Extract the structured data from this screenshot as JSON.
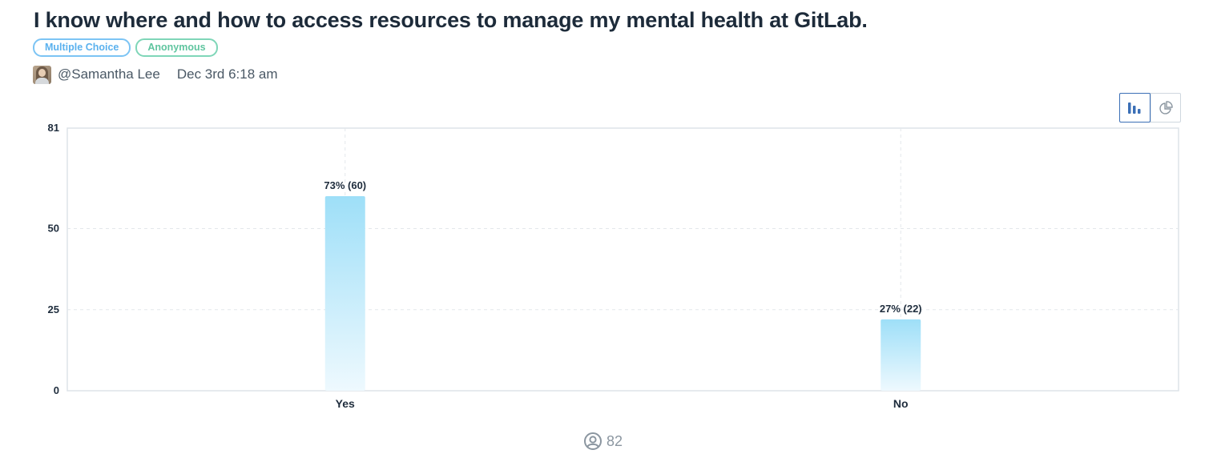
{
  "question": {
    "title": "I know where and how to access resources to manage my mental health at GitLab.",
    "tags": [
      "Multiple Choice",
      "Anonymous"
    ]
  },
  "author": {
    "name": "@Samantha Lee",
    "date": "Dec 3rd 6:18 am"
  },
  "view_toggle": {
    "options": [
      "bar-chart-icon",
      "pie-chart-icon"
    ],
    "active": "bar-chart-icon"
  },
  "colors": {
    "accent": "#3b6fb6",
    "bar_top": "#9edff8",
    "bar_bottom": "#eef9fe"
  },
  "chart_data": {
    "type": "bar",
    "categories": [
      "Yes",
      "No"
    ],
    "values": [
      60,
      22
    ],
    "data_labels": [
      "73% (60)",
      "27% (22)"
    ],
    "ylim": [
      0,
      81
    ],
    "yticks": [
      0,
      25,
      50,
      81
    ],
    "grid": true,
    "title": "",
    "xlabel": "",
    "ylabel": ""
  },
  "footer": {
    "respondent_icon": "user-circle-icon",
    "count": "82"
  }
}
